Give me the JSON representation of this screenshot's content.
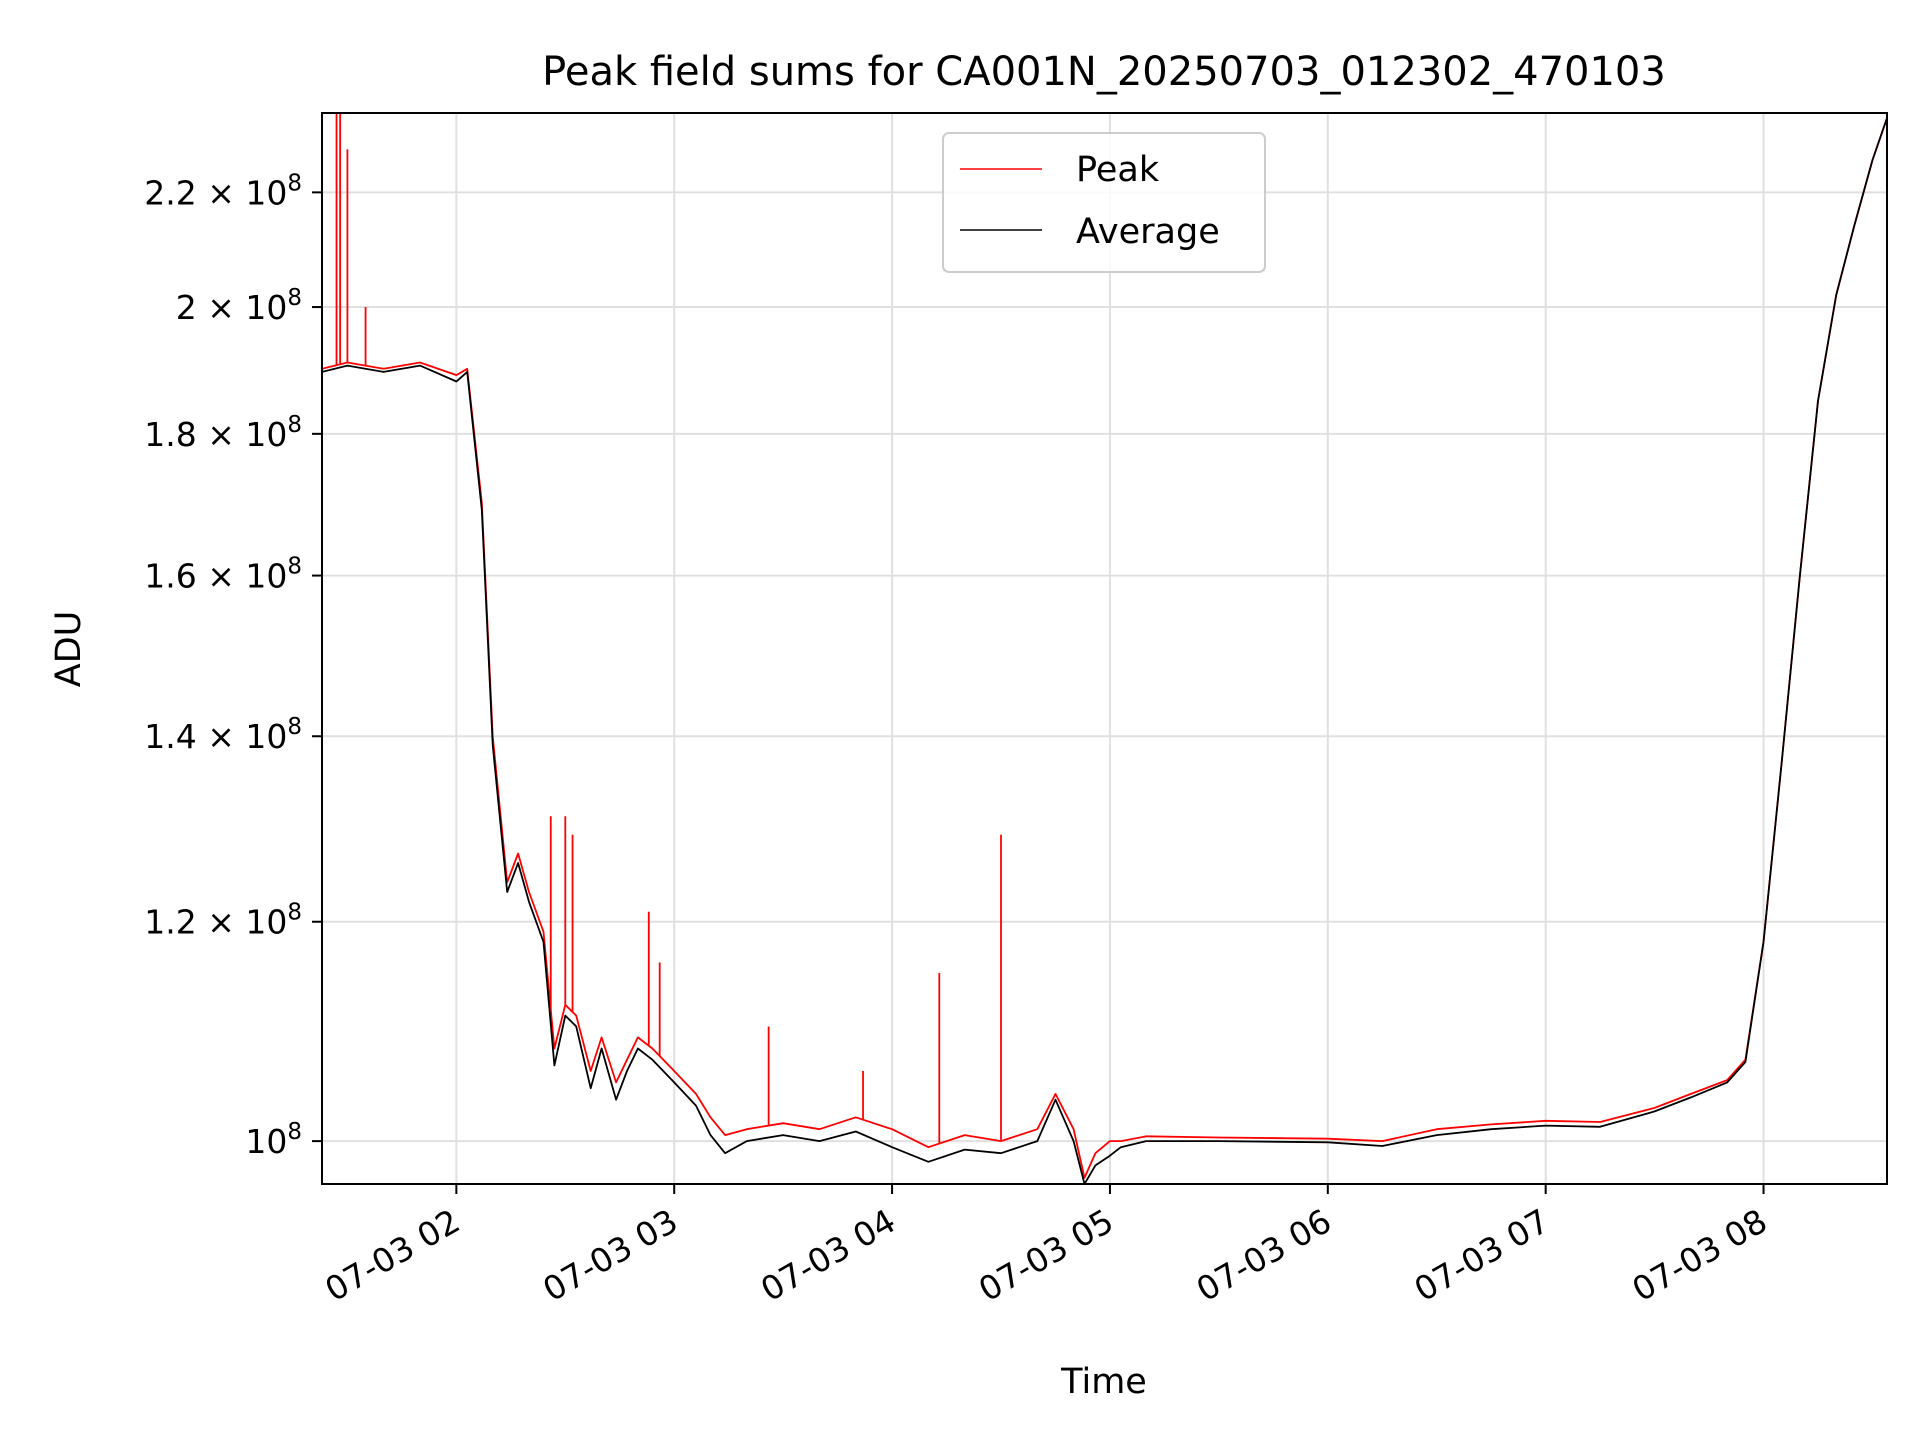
{
  "chart_data": {
    "type": "line",
    "title": "Peak field sums for CA001N_20250703_012302_470103",
    "xlabel": "Time",
    "ylabel": "ADU",
    "x_scale": "time",
    "y_scale": "log",
    "xlim": [
      "2025-07-03 01:23",
      "2025-07-03 08:34"
    ],
    "ylim": [
      96500000,
      235000000
    ],
    "grid": true,
    "legend_position": "top-center",
    "x_ticks": [
      {
        "value": "2025-07-03 02:00",
        "label": "07-03 02"
      },
      {
        "value": "2025-07-03 03:00",
        "label": "07-03 03"
      },
      {
        "value": "2025-07-03 04:00",
        "label": "07-03 04"
      },
      {
        "value": "2025-07-03 05:00",
        "label": "07-03 05"
      },
      {
        "value": "2025-07-03 06:00",
        "label": "07-03 06"
      },
      {
        "value": "2025-07-03 07:00",
        "label": "07-03 07"
      },
      {
        "value": "2025-07-03 08:00",
        "label": "07-03 08"
      }
    ],
    "y_ticks": [
      {
        "value": 100000000,
        "mantissa": "",
        "exponent": "8"
      },
      {
        "value": 120000000,
        "mantissa": "1.2",
        "exponent": "8"
      },
      {
        "value": 140000000,
        "mantissa": "1.4",
        "exponent": "8"
      },
      {
        "value": 160000000,
        "mantissa": "1.6",
        "exponent": "8"
      },
      {
        "value": 180000000,
        "mantissa": "1.8",
        "exponent": "8"
      },
      {
        "value": 200000000,
        "mantissa": "2",
        "exponent": "8"
      },
      {
        "value": 220000000,
        "mantissa": "2.2",
        "exponent": "8"
      }
    ],
    "series": [
      {
        "name": "Peak",
        "color": "#ff0000",
        "x": [
          "2025-07-03 01:23",
          "2025-07-03 01:30",
          "2025-07-03 01:40",
          "2025-07-03 01:50",
          "2025-07-03 02:00",
          "2025-07-03 02:03",
          "2025-07-03 02:07",
          "2025-07-03 02:10",
          "2025-07-03 02:14",
          "2025-07-03 02:17",
          "2025-07-03 02:20",
          "2025-07-03 02:24",
          "2025-07-03 02:27",
          "2025-07-03 02:30",
          "2025-07-03 02:33",
          "2025-07-03 02:37",
          "2025-07-03 02:40",
          "2025-07-03 02:44",
          "2025-07-03 02:47",
          "2025-07-03 02:50",
          "2025-07-03 02:54",
          "2025-07-03 03:00",
          "2025-07-03 03:06",
          "2025-07-03 03:10",
          "2025-07-03 03:14",
          "2025-07-03 03:20",
          "2025-07-03 03:30",
          "2025-07-03 03:40",
          "2025-07-03 03:50",
          "2025-07-03 04:00",
          "2025-07-03 04:10",
          "2025-07-03 04:20",
          "2025-07-03 04:30",
          "2025-07-03 04:40",
          "2025-07-03 04:45",
          "2025-07-03 04:50",
          "2025-07-03 04:53",
          "2025-07-03 04:56",
          "2025-07-03 05:00",
          "2025-07-03 05:03",
          "2025-07-03 05:10",
          "2025-07-03 05:30",
          "2025-07-03 06:00",
          "2025-07-03 06:15",
          "2025-07-03 06:30",
          "2025-07-03 06:45",
          "2025-07-03 07:00",
          "2025-07-03 07:15",
          "2025-07-03 07:30",
          "2025-07-03 07:40",
          "2025-07-03 07:50",
          "2025-07-03 07:55",
          "2025-07-03 08:00",
          "2025-07-03 08:05",
          "2025-07-03 08:10",
          "2025-07-03 08:15",
          "2025-07-03 08:20",
          "2025-07-03 08:25",
          "2025-07-03 08:30",
          "2025-07-03 08:34"
        ],
        "values": [
          190000000,
          191000000,
          190000000,
          191000000,
          189000000,
          190000000,
          170000000,
          140000000,
          124000000,
          127000000,
          123000000,
          119000000,
          108000000,
          112000000,
          111000000,
          106000000,
          109000000,
          105000000,
          107000000,
          109000000,
          108000000,
          106000000,
          104000000,
          102000000,
          100500000,
          101000000,
          101500000,
          101000000,
          102000000,
          101000000,
          99500000,
          100500000,
          100000000,
          101000000,
          104000000,
          101000000,
          97000000,
          99000000,
          100000000,
          100000000,
          100400000,
          100300000,
          100200000,
          100000000,
          101000000,
          101400000,
          101700000,
          101600000,
          102800000,
          104000000,
          105200000,
          107000000,
          118000000,
          137000000,
          160000000,
          185000000,
          202000000,
          214000000,
          226000000,
          234000000
        ],
        "spikes": [
          {
            "x": "2025-07-03 01:27",
            "value": 235000000
          },
          {
            "x": "2025-07-03 01:28",
            "value": 235000000
          },
          {
            "x": "2025-07-03 01:30",
            "value": 228000000
          },
          {
            "x": "2025-07-03 01:35",
            "value": 200000000
          },
          {
            "x": "2025-07-03 02:26",
            "value": 131000000
          },
          {
            "x": "2025-07-03 02:30",
            "value": 131000000
          },
          {
            "x": "2025-07-03 02:32",
            "value": 129000000
          },
          {
            "x": "2025-07-03 02:53",
            "value": 121000000
          },
          {
            "x": "2025-07-03 02:56",
            "value": 116000000
          },
          {
            "x": "2025-07-03 03:26",
            "value": 110000000
          },
          {
            "x": "2025-07-03 03:52",
            "value": 106000000
          },
          {
            "x": "2025-07-03 04:13",
            "value": 115000000
          },
          {
            "x": "2025-07-03 04:30",
            "value": 129000000
          }
        ]
      },
      {
        "name": "Average",
        "color": "#000000",
        "x": [
          "2025-07-03 01:23",
          "2025-07-03 01:30",
          "2025-07-03 01:40",
          "2025-07-03 01:50",
          "2025-07-03 02:00",
          "2025-07-03 02:03",
          "2025-07-03 02:07",
          "2025-07-03 02:10",
          "2025-07-03 02:14",
          "2025-07-03 02:17",
          "2025-07-03 02:20",
          "2025-07-03 02:24",
          "2025-07-03 02:27",
          "2025-07-03 02:30",
          "2025-07-03 02:33",
          "2025-07-03 02:37",
          "2025-07-03 02:40",
          "2025-07-03 02:44",
          "2025-07-03 02:47",
          "2025-07-03 02:50",
          "2025-07-03 02:54",
          "2025-07-03 03:00",
          "2025-07-03 03:06",
          "2025-07-03 03:10",
          "2025-07-03 03:14",
          "2025-07-03 03:20",
          "2025-07-03 03:30",
          "2025-07-03 03:40",
          "2025-07-03 03:50",
          "2025-07-03 04:00",
          "2025-07-03 04:10",
          "2025-07-03 04:20",
          "2025-07-03 04:30",
          "2025-07-03 04:40",
          "2025-07-03 04:45",
          "2025-07-03 04:50",
          "2025-07-03 04:53",
          "2025-07-03 04:56",
          "2025-07-03 05:00",
          "2025-07-03 05:03",
          "2025-07-03 05:10",
          "2025-07-03 05:30",
          "2025-07-03 06:00",
          "2025-07-03 06:15",
          "2025-07-03 06:30",
          "2025-07-03 06:45",
          "2025-07-03 07:00",
          "2025-07-03 07:15",
          "2025-07-03 07:30",
          "2025-07-03 07:40",
          "2025-07-03 07:50",
          "2025-07-03 07:55",
          "2025-07-03 08:00",
          "2025-07-03 08:05",
          "2025-07-03 08:10",
          "2025-07-03 08:15",
          "2025-07-03 08:20",
          "2025-07-03 08:25",
          "2025-07-03 08:30",
          "2025-07-03 08:34"
        ],
        "values": [
          189500000,
          190500000,
          189500000,
          190500000,
          188000000,
          189500000,
          169000000,
          139000000,
          123000000,
          126000000,
          122000000,
          118000000,
          106500000,
          111000000,
          110000000,
          104500000,
          108000000,
          103500000,
          106000000,
          108000000,
          107000000,
          105000000,
          103000000,
          100500000,
          99000000,
          100000000,
          100500000,
          100000000,
          100800000,
          99500000,
          98300000,
          99300000,
          99000000,
          100000000,
          103500000,
          100000000,
          96500000,
          98000000,
          98800000,
          99500000,
          100000000,
          100000000,
          99900000,
          99600000,
          100500000,
          101000000,
          101300000,
          101200000,
          102500000,
          103700000,
          105000000,
          106800000,
          118000000,
          137000000,
          160000000,
          185000000,
          202000000,
          214000000,
          226000000,
          234000000
        ]
      }
    ]
  }
}
